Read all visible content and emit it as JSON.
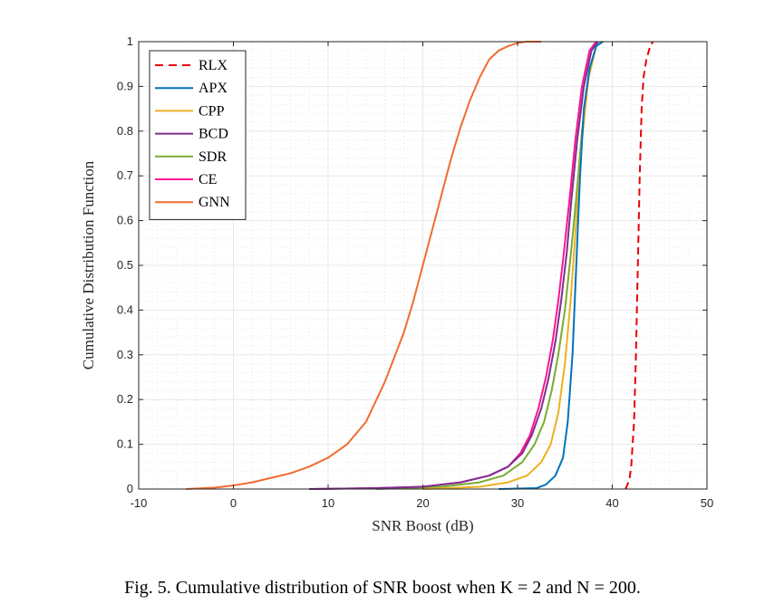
{
  "caption": "Fig. 5.  Cumulative distribution of SNR boost when K = 2 and N = 200.",
  "chart_data": {
    "type": "line",
    "title": "",
    "xlabel": "SNR Boost (dB)",
    "ylabel": "Cumulative Distribution Function",
    "xlim": [
      -10,
      50
    ],
    "ylim": [
      0,
      1
    ],
    "xticks": [
      "-10",
      "0",
      "10",
      "20",
      "30",
      "40",
      "50"
    ],
    "yticks": [
      "0",
      "0.1",
      "0.2",
      "0.3",
      "0.4",
      "0.5",
      "0.6",
      "0.7",
      "0.8",
      "0.9",
      "1"
    ],
    "grid": true,
    "minor_grid": true,
    "legend_position": "top-left",
    "series": [
      {
        "name": "RLX",
        "color": "#e8000b",
        "dash": true,
        "x": [
          41.4,
          41.8,
          42.0,
          42.3,
          42.5,
          42.7,
          42.9,
          43.1,
          43.3,
          43.6,
          44.0,
          44.3
        ],
        "y": [
          0,
          0.02,
          0.05,
          0.15,
          0.3,
          0.5,
          0.7,
          0.85,
          0.92,
          0.96,
          0.99,
          1.0
        ]
      },
      {
        "name": "APX",
        "color": "#0072bd",
        "dash": false,
        "x": [
          28,
          32,
          33,
          34,
          34.8,
          35.3,
          35.8,
          36.2,
          36.6,
          37.0,
          37.6,
          38.3,
          39.0
        ],
        "y": [
          0,
          0.002,
          0.01,
          0.03,
          0.07,
          0.15,
          0.3,
          0.5,
          0.7,
          0.85,
          0.94,
          0.99,
          1.0
        ]
      },
      {
        "name": "CPP",
        "color": "#edb120",
        "dash": false,
        "x": [
          20,
          26,
          29,
          31,
          32.5,
          33.5,
          34.3,
          35.0,
          35.6,
          36.2,
          36.8,
          37.5,
          38.3,
          39.0
        ],
        "y": [
          0,
          0.005,
          0.015,
          0.03,
          0.06,
          0.1,
          0.17,
          0.28,
          0.42,
          0.6,
          0.78,
          0.92,
          0.99,
          1.0
        ]
      },
      {
        "name": "BCD",
        "color": "#7e2f8e",
        "dash": false,
        "x": [
          8,
          15,
          20,
          24,
          27,
          29,
          30.5,
          31.5,
          32.5,
          33.3,
          34.0,
          34.6,
          35.2,
          35.7,
          36.3,
          37.0,
          37.8,
          38.5
        ],
        "y": [
          0,
          0.002,
          0.005,
          0.015,
          0.03,
          0.05,
          0.08,
          0.12,
          0.18,
          0.25,
          0.33,
          0.42,
          0.53,
          0.65,
          0.78,
          0.9,
          0.98,
          1.0
        ]
      },
      {
        "name": "SDR",
        "color": "#77ac30",
        "dash": false,
        "x": [
          15,
          22,
          26,
          28.5,
          30.5,
          31.8,
          32.8,
          33.6,
          34.3,
          35.0,
          35.6,
          36.2,
          36.8,
          37.5,
          38.3,
          39.0
        ],
        "y": [
          0,
          0.005,
          0.015,
          0.03,
          0.06,
          0.1,
          0.15,
          0.22,
          0.3,
          0.4,
          0.52,
          0.65,
          0.8,
          0.92,
          0.99,
          1.0
        ]
      },
      {
        "name": "CE",
        "color": "#ff1493",
        "dash": false,
        "x": [
          8,
          15,
          20,
          24,
          27,
          29,
          30.3,
          31.3,
          32.2,
          33.0,
          33.7,
          34.3,
          34.9,
          35.5,
          36.1,
          36.8,
          37.6,
          38.3
        ],
        "y": [
          0,
          0.002,
          0.005,
          0.015,
          0.03,
          0.05,
          0.08,
          0.12,
          0.18,
          0.25,
          0.33,
          0.42,
          0.53,
          0.65,
          0.78,
          0.9,
          0.98,
          1.0
        ]
      },
      {
        "name": "GNN",
        "color": "#f26b2f",
        "dash": false,
        "x": [
          -5,
          -2,
          0,
          2,
          4,
          6,
          8,
          10,
          12,
          14,
          16,
          18,
          19,
          20,
          21,
          22,
          23,
          24,
          25,
          26,
          27,
          28,
          29,
          30,
          31,
          32.5
        ],
        "y": [
          0,
          0.003,
          0.008,
          0.015,
          0.025,
          0.035,
          0.05,
          0.07,
          0.1,
          0.15,
          0.24,
          0.35,
          0.42,
          0.5,
          0.58,
          0.66,
          0.74,
          0.81,
          0.87,
          0.92,
          0.96,
          0.98,
          0.99,
          0.997,
          1.0,
          1.0
        ]
      }
    ]
  }
}
